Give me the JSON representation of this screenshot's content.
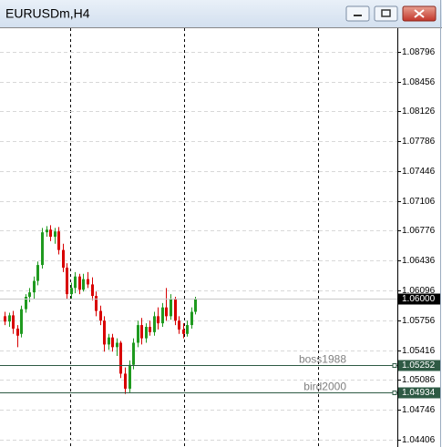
{
  "chart_data": {
    "type": "candlestick",
    "title": "EURUSDm,H4",
    "up_color": "#1f9a1f",
    "down_color": "#d80000",
    "open": [
      1.058,
      1.0574,
      1.0581,
      1.0566,
      1.056,
      1.0588,
      1.0602,
      1.0607,
      1.062,
      1.0638,
      1.0675,
      1.0678,
      1.067,
      1.0676,
      1.0655,
      1.0635,
      1.0605,
      1.0612,
      1.0625,
      1.061,
      1.0622,
      1.0616,
      1.0603,
      1.0586,
      1.0575,
      1.0548,
      1.0556,
      1.0545,
      1.055,
      1.0515,
      1.0498,
      1.0525,
      1.055,
      1.057,
      1.0555,
      1.0568,
      1.0562,
      1.058,
      1.0572,
      1.059,
      1.058,
      1.06,
      1.0575,
      1.0565,
      1.056,
      1.057,
      1.0585
    ],
    "high": [
      1.0585,
      1.0584,
      1.0586,
      1.057,
      1.0592,
      1.0605,
      1.0612,
      1.0625,
      1.0642,
      1.068,
      1.0682,
      1.0683,
      1.068,
      1.0681,
      1.0662,
      1.064,
      1.0618,
      1.063,
      1.0628,
      1.0628,
      1.063,
      1.0624,
      1.0608,
      1.0592,
      1.058,
      1.056,
      1.056,
      1.0555,
      1.0552,
      1.0522,
      1.053,
      1.0555,
      1.0575,
      1.0578,
      1.0572,
      1.0575,
      1.0585,
      1.059,
      1.0595,
      1.0612,
      1.0605,
      1.0602,
      1.058,
      1.0572,
      1.0575,
      1.059,
      1.0602
    ],
    "low": [
      1.057,
      1.0568,
      1.056,
      1.0545,
      1.0556,
      1.0584,
      1.0596,
      1.06,
      1.0615,
      1.0634,
      1.067,
      1.0665,
      1.0662,
      1.065,
      1.063,
      1.06,
      1.06,
      1.0606,
      1.0605,
      1.0608,
      1.0612,
      1.0598,
      1.058,
      1.057,
      1.054,
      1.0542,
      1.054,
      1.0535,
      1.051,
      1.0492,
      1.0494,
      1.052,
      1.0545,
      1.0548,
      1.055,
      1.0558,
      1.0558,
      1.0565,
      1.0568,
      1.0575,
      1.0576,
      1.057,
      1.056,
      1.0555,
      1.0557,
      1.0566,
      1.0582
    ],
    "close": [
      1.0574,
      1.0581,
      1.0566,
      1.0558,
      1.0588,
      1.0602,
      1.0607,
      1.062,
      1.0638,
      1.0675,
      1.0678,
      1.067,
      1.0676,
      1.0655,
      1.0635,
      1.0605,
      1.0612,
      1.0625,
      1.061,
      1.0622,
      1.0616,
      1.0603,
      1.0586,
      1.0575,
      1.0548,
      1.0556,
      1.0545,
      1.055,
      1.0515,
      1.0498,
      1.0525,
      1.055,
      1.057,
      1.0555,
      1.0568,
      1.0562,
      1.058,
      1.0572,
      1.059,
      1.058,
      1.06,
      1.0575,
      1.0565,
      1.056,
      1.057,
      1.0585,
      1.06
    ],
    "ylim": [
      1.0432,
      1.0906
    ],
    "yticks": [
      1.08796,
      1.08456,
      1.08126,
      1.07786,
      1.07446,
      1.07106,
      1.06776,
      1.06436,
      1.06096,
      1.05756,
      1.05416,
      1.05086,
      1.04746,
      1.04406
    ],
    "grid": true,
    "bid": {
      "value": 1.06,
      "label": "1.06000"
    },
    "hlines": [
      {
        "name": "boss1988",
        "value": 1.05252,
        "color": "#2e5a44"
      },
      {
        "name": "bird2000",
        "value": 1.04934,
        "color": "#2e5a44"
      }
    ]
  }
}
